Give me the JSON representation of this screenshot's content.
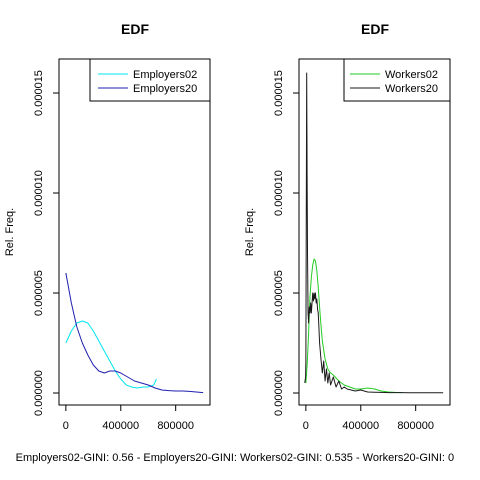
{
  "chart_data": [
    {
      "type": "line",
      "title": "EDF",
      "ylabel": "Rel. Freq.",
      "xlabel": "Employers02-GINI: 0.56 - Employers20-GINI: ",
      "xlim": [
        -50000,
        1050000
      ],
      "ylim": [
        -6e-07,
        1.67e-05
      ],
      "x_ticks": [
        0,
        400000,
        800000
      ],
      "x_tick_labels": [
        "0",
        "400000",
        "800000"
      ],
      "y_ticks": [
        0,
        5e-06,
        1e-05,
        1.5e-05
      ],
      "y_tick_labels": [
        "0.000000",
        "0.000005",
        "0.000010",
        "0.000015"
      ],
      "legend_position": "top-right",
      "series": [
        {
          "name": "Employers02",
          "color": "#00e5ee",
          "x": [
            0,
            40000,
            80000,
            120000,
            160000,
            200000,
            240000,
            280000,
            320000,
            360000,
            400000,
            440000,
            480000,
            520000,
            560000,
            600000,
            640000,
            660000
          ],
          "y": [
            2.5e-06,
            3.1e-06,
            3.5e-06,
            3.6e-06,
            3.5e-06,
            3.1e-06,
            2.6e-06,
            2.1e-06,
            1.6e-06,
            1.1e-06,
            7e-07,
            4e-07,
            3e-07,
            2.5e-07,
            3e-07,
            3e-07,
            4e-07,
            7e-07
          ]
        },
        {
          "name": "Employers20",
          "color": "#1f1fb0",
          "x": [
            0,
            40000,
            80000,
            120000,
            160000,
            200000,
            240000,
            280000,
            320000,
            360000,
            400000,
            450000,
            500000,
            550000,
            600000,
            650000,
            700000,
            750000,
            800000,
            850000,
            900000,
            950000,
            1000000
          ],
          "y": [
            6e-06,
            4.5e-06,
            3.3e-06,
            2.5e-06,
            1.9e-06,
            1.4e-06,
            1.1e-06,
            1e-06,
            1.1e-06,
            1.1e-06,
            1e-06,
            8e-07,
            6e-07,
            5e-07,
            4e-07,
            2.5e-07,
            1.5e-07,
            1.2e-07,
            1e-07,
            1e-07,
            8e-08,
            5e-08,
            2e-08
          ]
        }
      ]
    },
    {
      "type": "line",
      "title": "EDF",
      "ylabel": "Rel. Freq.",
      "xlabel": "Workers02-GINI: 0.535 - Workers20-GINI: 0",
      "xlim": [
        -50000,
        1050000
      ],
      "ylim": [
        -6e-07,
        1.67e-05
      ],
      "x_ticks": [
        0,
        400000,
        800000
      ],
      "x_tick_labels": [
        "0",
        "400000",
        "800000"
      ],
      "y_ticks": [
        0,
        5e-06,
        1e-05,
        1.5e-05
      ],
      "y_tick_labels": [
        "0.000000",
        "0.000005",
        "0.000010",
        "0.000015"
      ],
      "legend_position": "top-right",
      "series": [
        {
          "name": "Workers02",
          "color": "#22cc22",
          "x": [
            0,
            10000,
            20000,
            30000,
            40000,
            50000,
            60000,
            70000,
            80000,
            90000,
            100000,
            110000,
            120000,
            140000,
            160000,
            180000,
            200000,
            240000,
            280000,
            320000,
            360000,
            400000,
            450000,
            500000,
            550000,
            600000,
            650000,
            700000
          ],
          "y": [
            5e-07,
            1.5e-06,
            3e-06,
            4.8e-06,
            5.8e-06,
            6.4e-06,
            6.7e-06,
            6.6e-06,
            6.1e-06,
            5.3e-06,
            4.3e-06,
            3.4e-06,
            2.6e-06,
            1.7e-06,
            1.2e-06,
            1e-06,
            9e-07,
            6e-07,
            4e-07,
            3e-07,
            2e-07,
            2e-07,
            2.5e-07,
            2e-07,
            1e-07,
            5e-08,
            3e-08,
            2e-08
          ]
        },
        {
          "name": "Workers20",
          "color": "#1a1a1a",
          "x": [
            -8000,
            -2000,
            0,
            3000,
            6000,
            9000,
            12000,
            16000,
            20000,
            25000,
            30000,
            35000,
            40000,
            45000,
            50000,
            55000,
            60000,
            65000,
            70000,
            75000,
            80000,
            85000,
            90000,
            95000,
            100000,
            110000,
            120000,
            130000,
            140000,
            150000,
            160000,
            170000,
            180000,
            200000,
            220000,
            240000,
            260000,
            280000,
            300000,
            330000,
            360000,
            400000,
            450000,
            500000,
            550000,
            600000,
            650000,
            700000,
            750000,
            800000,
            850000,
            900000,
            950000,
            1000000
          ],
          "y": [
            5e-07,
            8e-07,
            1.5e-06,
            9e-06,
            1.6e-05,
            1.1e-05,
            7e-06,
            4e-06,
            3.5e-06,
            4.3e-06,
            4e-06,
            4.5e-06,
            4e-06,
            4.5e-06,
            5e-06,
            4.6e-06,
            5e-06,
            4.7e-06,
            5e-06,
            4.5e-06,
            4.7e-06,
            4.2e-06,
            4e-06,
            3.3e-06,
            2.5e-06,
            1.7e-06,
            1e-06,
            1.6e-06,
            6e-07,
            1.2e-06,
            5e-07,
            1e-06,
            4e-07,
            8e-07,
            3e-07,
            6e-07,
            2e-07,
            3e-07,
            2e-07,
            1.5e-07,
            1e-07,
            1.5e-07,
            5e-08,
            4e-08,
            3e-08,
            2e-08,
            2e-08,
            2e-08,
            1e-08,
            1e-08,
            1e-08,
            1e-08,
            1e-08,
            1e-08
          ]
        }
      ]
    }
  ]
}
